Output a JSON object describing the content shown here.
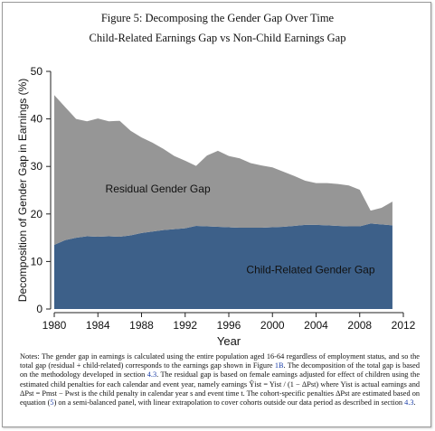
{
  "figure": {
    "title": "Figure 5: Decomposing the Gender Gap Over Time",
    "subtitle": "Child-Related Earnings Gap vs Non-Child Earnings Gap"
  },
  "chart_data": {
    "type": "area",
    "stacked": true,
    "xlabel": "Year",
    "ylabel": "Decomposition of Gender Gap in Earnings (%)",
    "xlim": [
      1980,
      2012
    ],
    "ylim": [
      0,
      50
    ],
    "x_ticks": [
      "1980",
      "1984",
      "1988",
      "1992",
      "1996",
      "2000",
      "2004",
      "2008",
      "2012"
    ],
    "y_ticks": [
      "0",
      "10",
      "20",
      "30",
      "40",
      "50"
    ],
    "grid": false,
    "x": [
      1980,
      1981,
      1982,
      1983,
      1984,
      1985,
      1986,
      1987,
      1988,
      1989,
      1990,
      1991,
      1992,
      1993,
      1994,
      1995,
      1996,
      1997,
      1998,
      1999,
      2000,
      2001,
      2002,
      2003,
      2004,
      2005,
      2006,
      2007,
      2008,
      2009,
      2010,
      2011
    ],
    "series": [
      {
        "name": "Child-Related Gender Gap",
        "color": "#3d6089",
        "values": [
          13.5,
          14.5,
          15.0,
          15.3,
          15.2,
          15.3,
          15.2,
          15.5,
          16.0,
          16.3,
          16.6,
          16.8,
          17.0,
          17.5,
          17.4,
          17.3,
          17.2,
          17.1,
          17.1,
          17.1,
          17.2,
          17.3,
          17.5,
          17.7,
          17.7,
          17.6,
          17.5,
          17.4,
          17.4,
          18.0,
          17.8,
          17.6
        ]
      },
      {
        "name": "Residual Gender Gap",
        "color": "#969696",
        "values": [
          31.5,
          28.0,
          25.0,
          24.2,
          24.9,
          24.2,
          24.4,
          22.0,
          20.1,
          18.7,
          17.1,
          15.4,
          14.2,
          12.6,
          14.9,
          16.0,
          15.0,
          14.6,
          13.6,
          13.1,
          12.6,
          11.6,
          10.5,
          9.3,
          8.8,
          8.9,
          8.8,
          8.6,
          7.7,
          2.7,
          3.5,
          5.0
        ]
      }
    ],
    "annotations": [
      {
        "text": "Residual Gender Gap",
        "x": 1989.5,
        "y": 24.5
      },
      {
        "text": "Child-Related Gender Gap",
        "x": 2003.5,
        "y": 7.5
      }
    ]
  },
  "notes": {
    "p1": "Notes: The gender gap in earnings is calculated using the entire population aged 16-64 regardless of employment status, and so the total gap (residual + child-related) corresponds to the earnings gap shown in Figure ",
    "link1": "1B",
    "p2": ". The decomposition of the total gap is based on the methodology developed in section ",
    "link2": "4.3",
    "p3": ". The residual gap is based on female earnings adjusted for effect of children using the estimated child penalties for each calendar and event year, namely earnings Ŷist = Yist / (1 − ΔPst) where Yist is actual earnings and ΔPst = Pmst − Pwst is the child penalty in calendar year s and event time t. The cohort-specific penalties ΔPst are estimated based on equation (",
    "link3": "5",
    "p4": ") on a semi-balanced panel, with linear extrapolation to cover cohorts outside our data period as described in section ",
    "link4": "4.3",
    "p5": "."
  }
}
